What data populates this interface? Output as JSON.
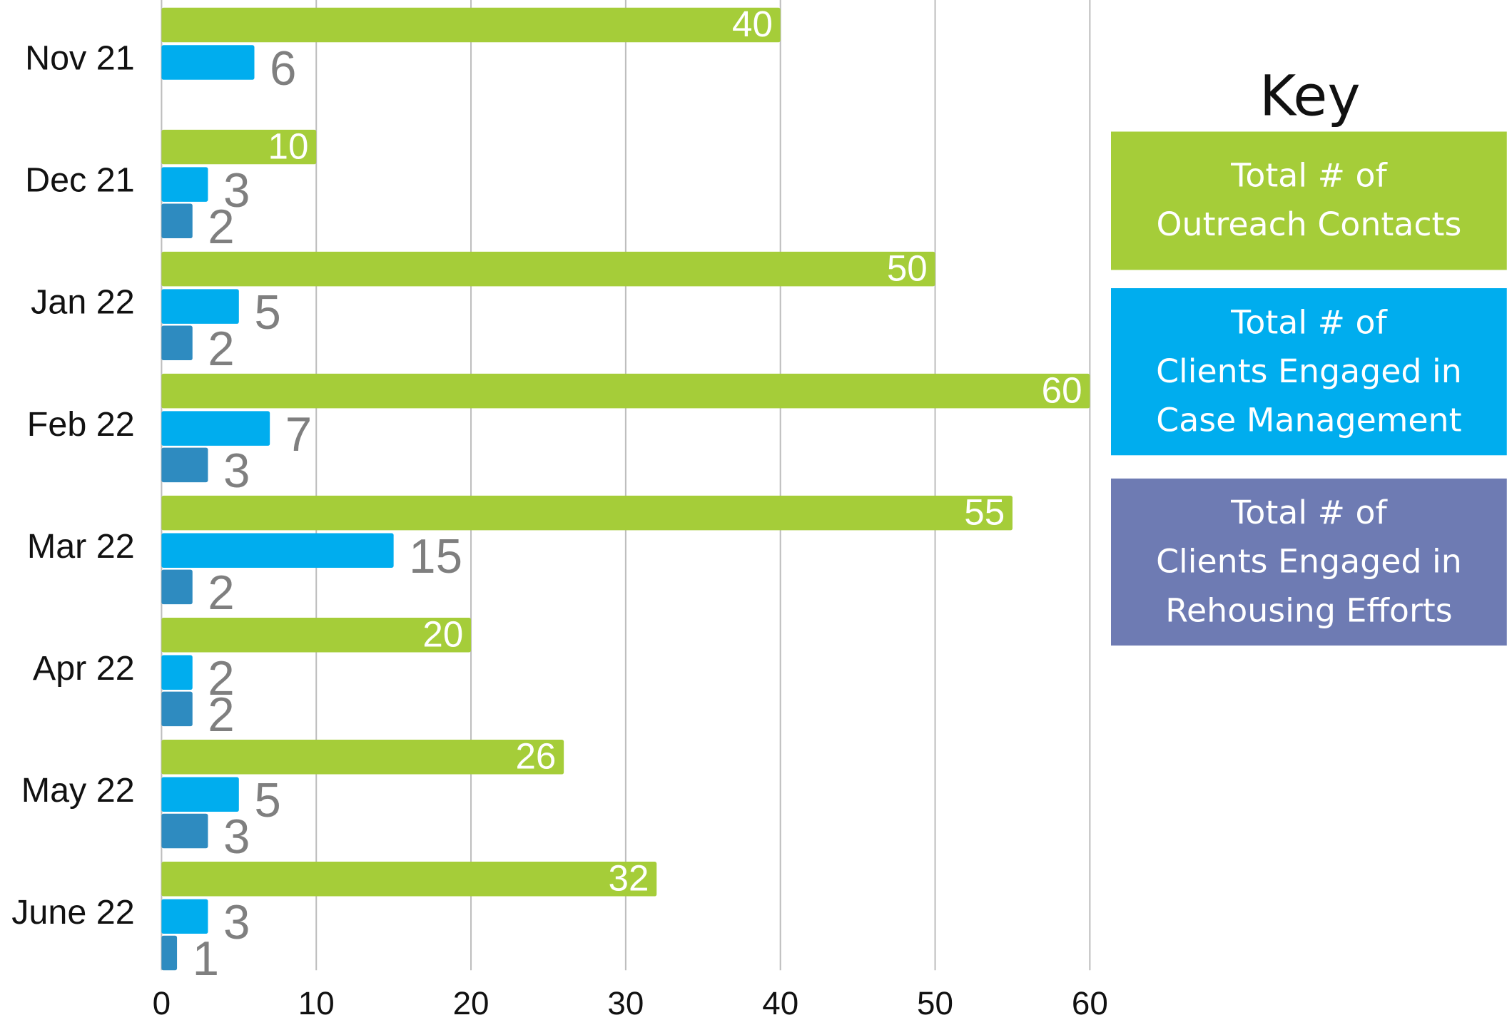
{
  "chart_data": {
    "type": "hbar",
    "legend_title": "Key",
    "categories": [
      "Nov 21",
      "Dec 21",
      "Jan 22",
      "Feb 22",
      "Mar 22",
      "Apr 22",
      "May 22",
      "June 22"
    ],
    "series": [
      {
        "name": "Total # of\nOutreach Contacts",
        "color": "#a5cd39",
        "legend_color": "#a5cd39",
        "values": [
          40,
          10,
          50,
          60,
          55,
          20,
          26,
          32
        ]
      },
      {
        "name": "Total # of\nClients Engaged in\nCase Management",
        "color": "#00adee",
        "legend_color": "#00adee",
        "values": [
          6,
          3,
          5,
          7,
          15,
          2,
          5,
          3
        ]
      },
      {
        "name": "Total # of\nClients Engaged in\nRehousing Efforts",
        "color": "#2e8bc0",
        "legend_color": "#6e7bb3",
        "values": [
          null,
          2,
          2,
          3,
          2,
          2,
          3,
          1
        ]
      }
    ],
    "xlim": [
      0,
      60
    ],
    "xticks": [
      0,
      10,
      20,
      30,
      40,
      50,
      60
    ],
    "grid": true,
    "legend": "right"
  }
}
